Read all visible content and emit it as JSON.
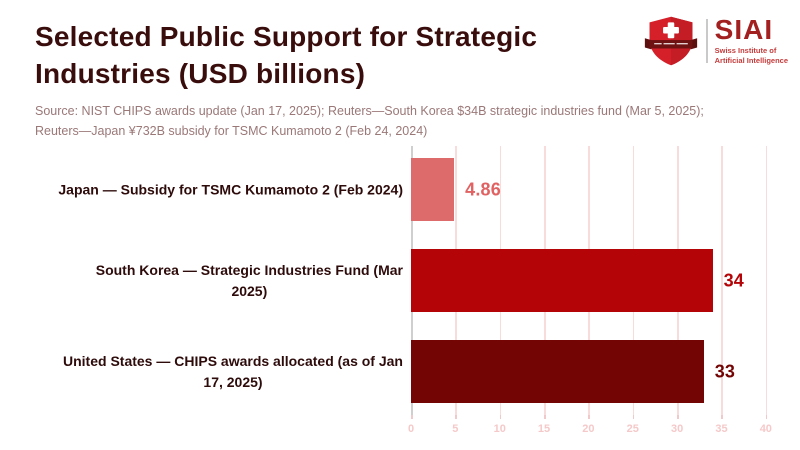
{
  "header": {
    "title": "Selected Public Support for Strategic\nIndustries (USD billions)",
    "source": "Source: NIST CHIPS awards update (Jan 17, 2025); Reuters—South Korea $34B strategic industries fund (Mar 5, 2025);\nReuters—Japan ¥732B subsidy for TSMC Kumamoto 2 (Feb 24, 2024)"
  },
  "logo": {
    "acronym": "SIAI",
    "tagline": "Swiss Institute of\nArtificial Intelligence",
    "shield_icon": "swiss-shield-cross-icon",
    "colors": {
      "shield_red": "#d5202a",
      "ribbon_maroon": "#6e1212",
      "acronym_red": "#a32020",
      "tagline_red": "#c53b3b"
    }
  },
  "chart_data": {
    "type": "bar",
    "orientation": "horizontal",
    "title": "Selected Public Support for Strategic Industries (USD billions)",
    "categories": [
      "Japan — Subsidy for TSMC Kumamoto 2 (Feb 2024)",
      "South Korea — Strategic Industries Fund (Mar 2025)",
      "United States — CHIPS awards allocated (as of Jan 17, 2025)"
    ],
    "categories_display": [
      "Japan — Subsidy for TSMC Kumamoto 2 (Feb 2024)",
      "South Korea — Strategic Industries Fund (Mar\n2025)",
      "United States — CHIPS awards allocated (as of Jan\n17, 2025)"
    ],
    "values": [
      4.86,
      34,
      33
    ],
    "value_labels": [
      "4.86",
      "34",
      "33"
    ],
    "bar_colors": [
      "#dd6b6b",
      "#b40407",
      "#740505"
    ],
    "value_label_colors": [
      "#e06262",
      "#b40407",
      "#740505"
    ],
    "xlim": [
      0,
      42.5
    ],
    "xticks": [
      0,
      5,
      10,
      15,
      20,
      25,
      30,
      35,
      40
    ],
    "grid": true,
    "gridline_color": "#f8dcdc",
    "zero_line_color": "#cfcfcf",
    "tick_label_color": "#f5c9c9",
    "legend": "none"
  }
}
